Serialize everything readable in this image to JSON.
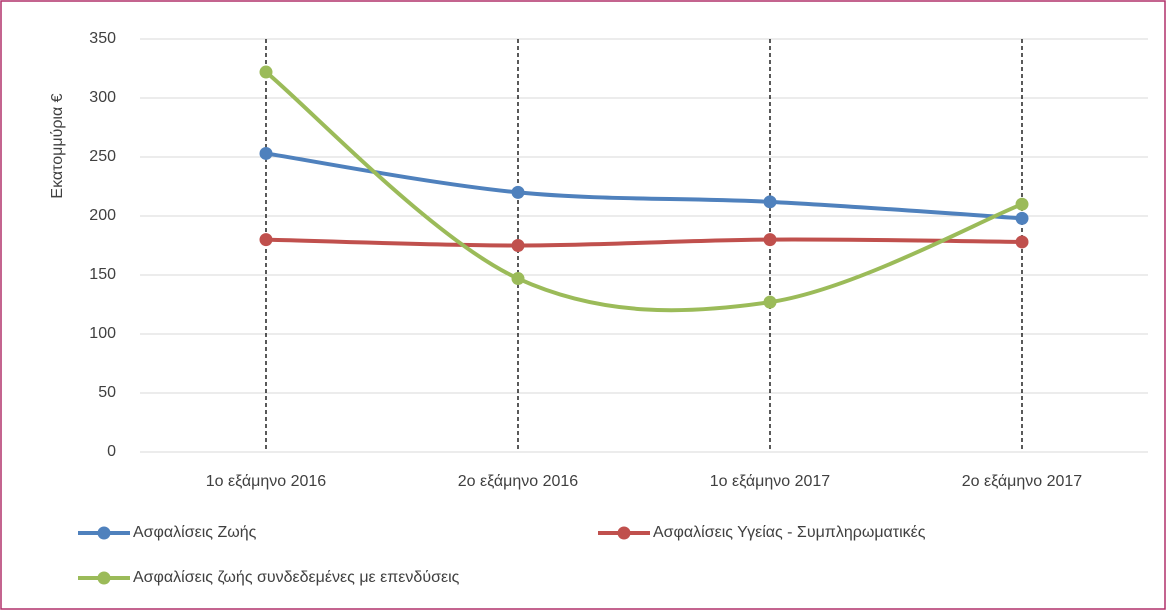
{
  "chart_data": {
    "type": "line",
    "y_label": "Εκατομμύρια €",
    "categories": [
      "1ο εξάμηνο 2016",
      "2ο εξάμηνο 2016",
      "1ο εξάμηνο 2017",
      "2ο εξάμηνο 2017"
    ],
    "series": [
      {
        "name": "Ασφαλίσεις Ζωής",
        "color": "#4f81bd",
        "values": [
          253,
          220,
          212,
          198
        ]
      },
      {
        "name": "Ασφαλίσεις Υγείας - Συμπληρωματικές",
        "color": "#c0504d",
        "values": [
          180,
          175,
          180,
          178
        ]
      },
      {
        "name": "Ασφαλίσεις ζωής συνδεδεμένες με επενδύσεις",
        "color": "#9bbb59",
        "values": [
          322,
          147,
          127,
          210
        ]
      }
    ],
    "ylim": [
      0,
      350
    ],
    "yticks": [
      0,
      50,
      100,
      150,
      200,
      250,
      300,
      350
    ],
    "grid": true,
    "drop_lines": true,
    "smooth": true,
    "legend": "bottom"
  }
}
